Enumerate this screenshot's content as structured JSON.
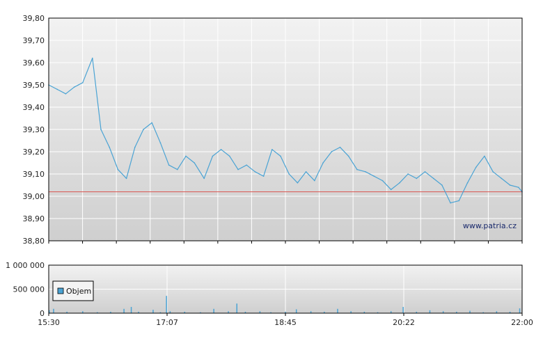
{
  "watermark": "www.patria.cz",
  "legend": {
    "label": "Objem"
  },
  "colors": {
    "price_line": "#4aa3d4",
    "reference_line": "#d9534f",
    "volume_bar": "#4aa3d4",
    "plot_bg_top": "#f2f2f2",
    "plot_bg_bottom": "#cfcfcf",
    "grid": "#ffffff",
    "axis": "#000000"
  },
  "chart_data": [
    {
      "type": "line",
      "title": "",
      "xlabel": "",
      "ylabel": "",
      "ylim": [
        38.8,
        39.8
      ],
      "xlim": [
        "15:30",
        "22:00"
      ],
      "grid": true,
      "y_ticks": [
        "39,80",
        "39,70",
        "39,60",
        "39,50",
        "39,40",
        "39,30",
        "39,20",
        "39,10",
        "39,00",
        "38,90",
        "38,80"
      ],
      "reference_line": 39.02,
      "series": [
        {
          "x": [
            "15:30",
            "15:37",
            "15:44",
            "15:51",
            "15:58",
            "16:06",
            "16:13",
            "16:20",
            "16:27",
            "16:34",
            "16:41",
            "16:48",
            "16:55",
            "17:02",
            "17:09",
            "17:16",
            "17:23",
            "17:30",
            "17:38",
            "17:45",
            "17:52",
            "17:59",
            "18:06",
            "18:13",
            "18:20",
            "18:27",
            "18:34",
            "18:41",
            "18:48",
            "18:55",
            "19:02",
            "19:09",
            "19:16",
            "19:23",
            "19:30",
            "19:37",
            "19:44",
            "19:51",
            "19:58",
            "20:05",
            "20:12",
            "20:19",
            "20:26",
            "20:33",
            "20:40",
            "20:47",
            "20:54",
            "21:01",
            "21:08",
            "21:15",
            "21:22",
            "21:29",
            "21:36",
            "21:43",
            "21:50",
            "21:57",
            "22:00"
          ],
          "values": [
            39.5,
            39.48,
            39.46,
            39.49,
            39.51,
            39.62,
            39.3,
            39.22,
            39.12,
            39.08,
            39.22,
            39.3,
            39.33,
            39.24,
            39.14,
            39.12,
            39.18,
            39.15,
            39.08,
            39.18,
            39.21,
            39.18,
            39.12,
            39.14,
            39.11,
            39.09,
            39.21,
            39.18,
            39.1,
            39.06,
            39.11,
            39.07,
            39.15,
            39.2,
            39.22,
            39.18,
            39.12,
            39.11,
            39.09,
            39.07,
            39.03,
            39.06,
            39.1,
            39.08,
            39.11,
            39.08,
            39.05,
            38.97,
            38.98,
            39.06,
            39.13,
            39.18,
            39.11,
            39.08,
            39.05,
            39.04,
            39.02
          ]
        }
      ]
    },
    {
      "type": "bar",
      "title": "",
      "xlabel": "",
      "ylabel": "",
      "ylim": [
        0,
        1000000
      ],
      "y_ticks": [
        "1 000 000",
        "500 000",
        "0"
      ],
      "x_ticks": [
        "15:30",
        "17:07",
        "18:45",
        "20:22",
        "22:00"
      ],
      "grid": true,
      "legend_position": "left",
      "series": [
        {
          "name": "Objem",
          "x": [
            "15:30",
            "15:34",
            "15:45",
            "15:58",
            "16:10",
            "16:21",
            "16:32",
            "16:38",
            "16:44",
            "16:56",
            "17:02",
            "17:07",
            "17:10",
            "17:22",
            "17:35",
            "17:46",
            "17:58",
            "18:05",
            "18:12",
            "18:24",
            "18:33",
            "18:45",
            "18:54",
            "19:06",
            "19:17",
            "19:28",
            "19:39",
            "19:50",
            "20:01",
            "20:12",
            "20:22",
            "20:33",
            "20:44",
            "20:55",
            "21:06",
            "21:17",
            "21:28",
            "21:39",
            "21:50",
            "21:58"
          ],
          "values": [
            60000,
            90000,
            30000,
            40000,
            20000,
            30000,
            90000,
            130000,
            30000,
            70000,
            20000,
            360000,
            40000,
            30000,
            20000,
            90000,
            40000,
            200000,
            30000,
            40000,
            20000,
            30000,
            80000,
            40000,
            30000,
            90000,
            40000,
            30000,
            20000,
            40000,
            130000,
            30000,
            60000,
            40000,
            30000,
            50000,
            20000,
            40000,
            30000,
            100000
          ]
        }
      ]
    }
  ]
}
